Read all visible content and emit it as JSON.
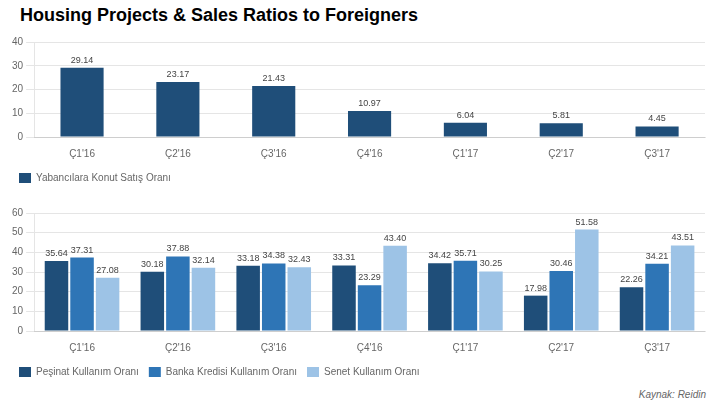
{
  "chart_data": [
    {
      "type": "bar",
      "title": "Housing Projects & Sales Ratios to Foreigners",
      "categories": [
        "Ç1'16",
        "Ç2'16",
        "Ç3'16",
        "Ç4'16",
        "Ç1'17",
        "Ç2'17",
        "Ç3'17"
      ],
      "series": [
        {
          "name": "Yabancılara Konut Satış Oranı",
          "color": "#1F4E79",
          "values": [
            29.14,
            23.17,
            21.43,
            10.97,
            6.04,
            5.81,
            4.45
          ]
        }
      ],
      "ylim": [
        0,
        40
      ],
      "yticks": [
        0,
        10,
        20,
        30,
        40
      ],
      "grid": true,
      "legend": "bottom",
      "data_labels": true
    },
    {
      "type": "bar",
      "categories": [
        "Ç1'16",
        "Ç2'16",
        "Ç3'16",
        "Ç4'16",
        "Ç1'17",
        "Ç2'17",
        "Ç3'17"
      ],
      "series": [
        {
          "name": "Peşinat Kullanım Oranı",
          "color": "#1F4E79",
          "values": [
            35.64,
            30.18,
            33.18,
            33.31,
            34.42,
            17.98,
            22.26
          ]
        },
        {
          "name": "Banka Kredisi Kullanım Oranı",
          "color": "#2E75B6",
          "values": [
            37.31,
            37.88,
            34.38,
            23.29,
            35.71,
            30.46,
            34.21
          ]
        },
        {
          "name": "Senet Kullanım Oranı",
          "color": "#9DC3E6",
          "values": [
            27.08,
            32.14,
            32.43,
            43.4,
            30.25,
            51.58,
            43.51
          ],
          "value_labels": [
            "27.08",
            "32.14",
            "32.43",
            "43.40",
            "30.25",
            "51.58",
            "43.51"
          ]
        }
      ],
      "ylim": [
        0,
        60
      ],
      "yticks": [
        0,
        10,
        20,
        30,
        40,
        50,
        60
      ],
      "grid": true,
      "legend": "bottom",
      "data_labels": true,
      "annotation": "Kaynak: Reidin"
    }
  ]
}
